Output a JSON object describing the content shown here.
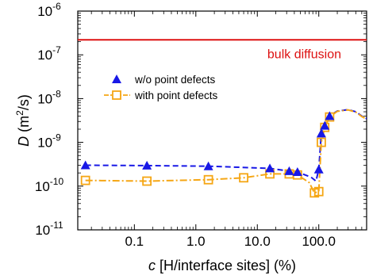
{
  "chart_data": {
    "type": "scatter",
    "xlabel": {
      "var": "c",
      "rest": " [H/interface sites] (%)"
    },
    "ylabel": {
      "var": "D",
      "rest": " (m",
      "sup": "2",
      "end": "/s)"
    },
    "xscale": "log",
    "yscale": "log",
    "xlim": [
      0.012,
      600
    ],
    "ylim": [
      1e-11,
      1e-06
    ],
    "x_ticks": [
      {
        "value": 0.1,
        "label": "0.1"
      },
      {
        "value": 1,
        "label": "1.0"
      },
      {
        "value": 10,
        "label": "10.0"
      },
      {
        "value": 100,
        "label": "100.0"
      }
    ],
    "y_ticks": [
      {
        "value": 1e-11,
        "base": "10",
        "exp": "-11"
      },
      {
        "value": 1e-10,
        "base": "10",
        "exp": "-10"
      },
      {
        "value": 1e-09,
        "base": "10",
        "exp": "-9"
      },
      {
        "value": 1e-08,
        "base": "10",
        "exp": "-8"
      },
      {
        "value": 1e-07,
        "base": "10",
        "exp": "-7"
      },
      {
        "value": 1e-06,
        "base": "10",
        "exp": "-6"
      }
    ],
    "reference_line": {
      "label": "bulk diffusion",
      "y": 2.2e-07,
      "color": "#dd1111"
    },
    "legend": {
      "placement": "upper-left"
    },
    "series": [
      {
        "name": "w/o point defects",
        "marker": "filled-triangle",
        "line": "dashed",
        "color": "#1818e6",
        "points": [
          {
            "x": 0.016,
            "y": 3e-10
          },
          {
            "x": 0.16,
            "y": 2.95e-10
          },
          {
            "x": 1.6,
            "y": 2.85e-10
          },
          {
            "x": 16,
            "y": 2.55e-10
          },
          {
            "x": 33,
            "y": 2.2e-10
          },
          {
            "x": 45,
            "y": 2.1e-10
          },
          {
            "x": 100,
            "y": 2.4e-10
          },
          {
            "x": 110,
            "y": 1.6e-09
          },
          {
            "x": 125,
            "y": 2.4e-09
          },
          {
            "x": 150,
            "y": 4e-09
          }
        ],
        "curve": [
          {
            "x": 0.016,
            "y": 3e-10
          },
          {
            "x": 0.16,
            "y": 2.95e-10
          },
          {
            "x": 1.6,
            "y": 2.85e-10
          },
          {
            "x": 16,
            "y": 2.55e-10
          },
          {
            "x": 33,
            "y": 2.2e-10
          },
          {
            "x": 45,
            "y": 2.1e-10
          },
          {
            "x": 75,
            "y": 1.6e-10
          },
          {
            "x": 90,
            "y": 1.3e-10
          },
          {
            "x": 100,
            "y": 2.4e-10
          },
          {
            "x": 110,
            "y": 1.6e-09
          },
          {
            "x": 125,
            "y": 2.4e-09
          },
          {
            "x": 150,
            "y": 4e-09
          },
          {
            "x": 200,
            "y": 5.2e-09
          },
          {
            "x": 300,
            "y": 5.6e-09
          },
          {
            "x": 400,
            "y": 5e-09
          },
          {
            "x": 500,
            "y": 4e-09
          },
          {
            "x": 600,
            "y": 3.5e-09
          }
        ]
      },
      {
        "name": "with point defects",
        "marker": "open-square",
        "line": "dash-dot",
        "color": "#f5a614",
        "points": [
          {
            "x": 0.016,
            "y": 1.35e-10
          },
          {
            "x": 0.16,
            "y": 1.3e-10
          },
          {
            "x": 1.6,
            "y": 1.4e-10
          },
          {
            "x": 6,
            "y": 1.55e-10
          },
          {
            "x": 16,
            "y": 1.9e-10
          },
          {
            "x": 33,
            "y": 1.9e-10
          },
          {
            "x": 45,
            "y": 1.8e-10
          },
          {
            "x": 85,
            "y": 7e-11
          },
          {
            "x": 100,
            "y": 7.5e-11
          },
          {
            "x": 110,
            "y": 1e-09
          },
          {
            "x": 125,
            "y": 2.2e-09
          },
          {
            "x": 150,
            "y": 3.8e-09
          }
        ],
        "curve": [
          {
            "x": 0.016,
            "y": 1.35e-10
          },
          {
            "x": 0.16,
            "y": 1.3e-10
          },
          {
            "x": 1.6,
            "y": 1.4e-10
          },
          {
            "x": 6,
            "y": 1.55e-10
          },
          {
            "x": 16,
            "y": 1.9e-10
          },
          {
            "x": 33,
            "y": 1.9e-10
          },
          {
            "x": 45,
            "y": 1.8e-10
          },
          {
            "x": 70,
            "y": 1.2e-10
          },
          {
            "x": 85,
            "y": 7e-11
          },
          {
            "x": 100,
            "y": 7.5e-11
          },
          {
            "x": 110,
            "y": 1e-09
          },
          {
            "x": 125,
            "y": 2.2e-09
          },
          {
            "x": 150,
            "y": 3.8e-09
          },
          {
            "x": 200,
            "y": 5.1e-09
          },
          {
            "x": 300,
            "y": 5.5e-09
          },
          {
            "x": 400,
            "y": 4.9e-09
          },
          {
            "x": 500,
            "y": 3.9e-09
          },
          {
            "x": 600,
            "y": 3.4e-09
          }
        ]
      }
    ]
  }
}
